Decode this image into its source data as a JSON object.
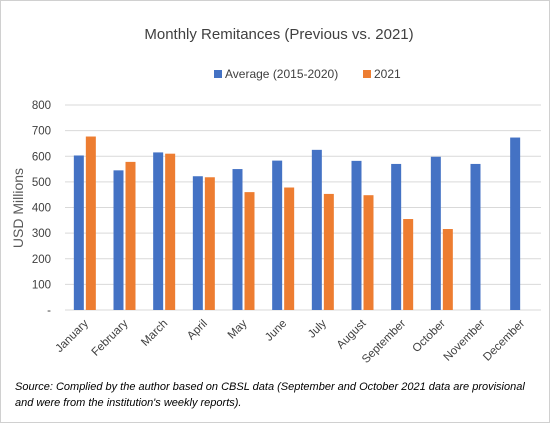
{
  "chart_data": {
    "type": "bar",
    "title": "Monthly Remitances (Previous vs. 2021)",
    "ylabel": "USD Millions",
    "xlabel": "",
    "ylim": [
      0,
      800
    ],
    "yticks": [
      "-",
      "100",
      "200",
      "300",
      "400",
      "500",
      "600",
      "700",
      "800"
    ],
    "grid": true,
    "legend_position": "top",
    "categories": [
      "January",
      "February",
      "March",
      "April",
      "May",
      "June",
      "July",
      "August",
      "September",
      "October",
      "November",
      "December"
    ],
    "series": [
      {
        "name": "Average (2015-2020)",
        "color": "#4472c4",
        "values": [
          603,
          545,
          615,
          522,
          550,
          583,
          625,
          582,
          570,
          598,
          570,
          673
        ]
      },
      {
        "name": "2021",
        "color": "#ed7d31",
        "values": [
          677,
          578,
          610,
          518,
          460,
          478,
          453,
          448,
          355,
          316,
          null,
          null
        ]
      }
    ]
  },
  "source_note": "Source: Complied by the author based on CBSL data (September and October 2021 data are provisional  and were from the institution's weekly reports)."
}
